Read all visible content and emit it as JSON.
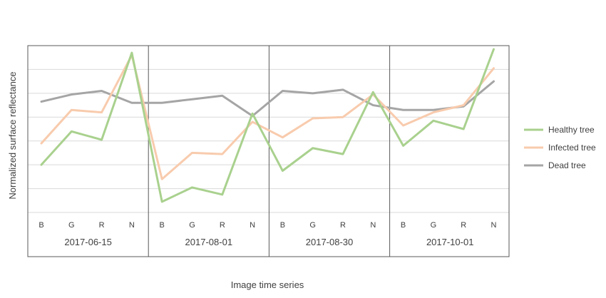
{
  "chart_data": {
    "type": "line",
    "xlabel": "Image time series",
    "ylabel": "Normalized surface reflectance",
    "ylim": [
      0,
      7
    ],
    "grid": "horizontal",
    "legend_position": "right",
    "groups": [
      "2017-06-15",
      "2017-08-01",
      "2017-08-30",
      "2017-10-01"
    ],
    "bands": [
      "B",
      "G",
      "R",
      "N"
    ],
    "series": [
      {
        "name": "Healthy tree",
        "color": "#a9d18e",
        "values": [
          2.0,
          3.4,
          3.05,
          6.7,
          0.45,
          1.05,
          0.75,
          4.15,
          1.75,
          2.7,
          2.45,
          5.05,
          2.8,
          3.85,
          3.5,
          6.85
        ]
      },
      {
        "name": "Infected tree",
        "color": "#f8cbad",
        "values": [
          2.9,
          4.3,
          4.2,
          6.6,
          1.4,
          2.5,
          2.45,
          3.8,
          3.15,
          3.95,
          4.0,
          4.95,
          3.65,
          4.2,
          4.5,
          6.05
        ]
      },
      {
        "name": "Dead tree",
        "color": "#a5a5a5",
        "values": [
          4.65,
          4.95,
          5.1,
          4.6,
          4.6,
          4.75,
          4.9,
          4.05,
          5.1,
          5.0,
          5.15,
          4.5,
          4.3,
          4.3,
          4.45,
          5.5
        ]
      }
    ]
  }
}
